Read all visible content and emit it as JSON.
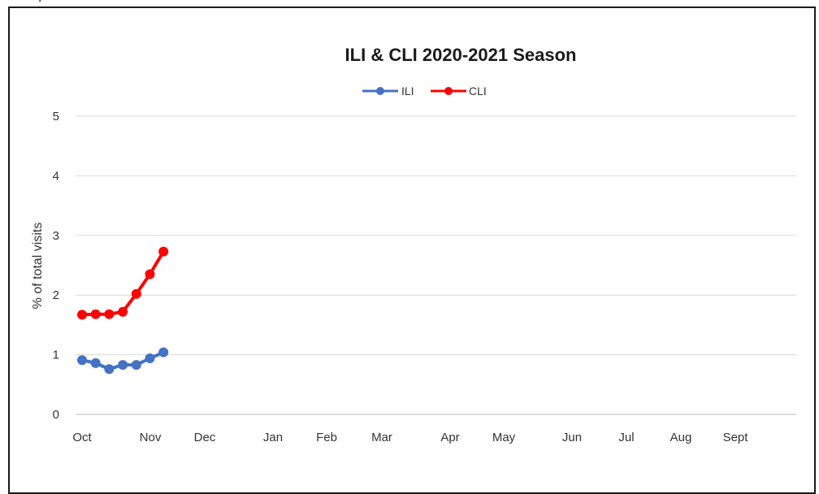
{
  "chart_data": {
    "type": "line",
    "title": "ILI & CLI 2020-2021 Season",
    "ylabel": "% of total visits",
    "xlabel": "",
    "ylim": [
      0,
      5
    ],
    "yticks": [
      "0",
      "1",
      "2",
      "3",
      "4",
      "5"
    ],
    "x_tick_labels": [
      "Oct",
      "Nov",
      "Dec",
      "Jan",
      "Feb",
      "Mar",
      "Apr",
      "May",
      "Jun",
      "Jul",
      "Aug",
      "Sept"
    ],
    "grid": true,
    "legend_position": "top-center",
    "series": [
      {
        "name": "ILI",
        "color": "#4472C4",
        "week_index": [
          0,
          1,
          2,
          3,
          4,
          5,
          6
        ],
        "values": [
          0.91,
          0.86,
          0.76,
          0.83,
          0.83,
          0.94,
          1.04
        ]
      },
      {
        "name": "CLI",
        "color": "#FF0000",
        "week_index": [
          0,
          1,
          2,
          3,
          4,
          5,
          6
        ],
        "values": [
          1.67,
          1.68,
          1.68,
          1.72,
          2.02,
          2.35,
          2.73
        ]
      }
    ]
  }
}
